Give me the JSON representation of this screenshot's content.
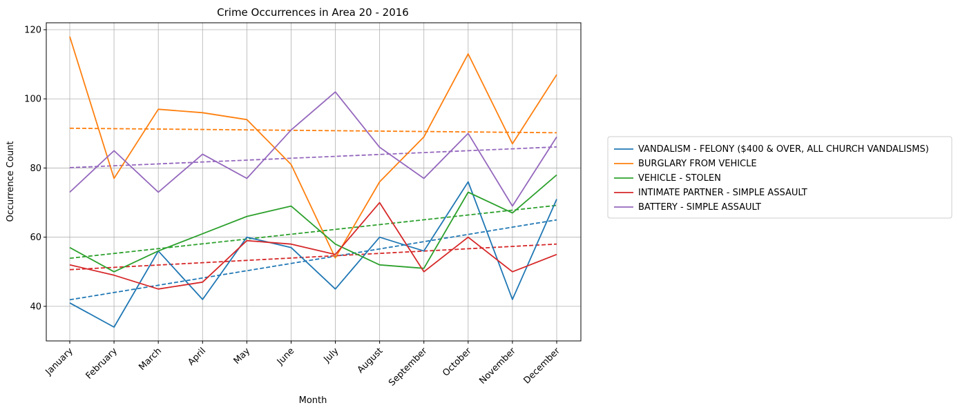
{
  "chart_data": {
    "type": "line",
    "title": "Crime Occurrences in Area 20 - 2016",
    "xlabel": "Month",
    "ylabel": "Occurrence Count",
    "categories": [
      "January",
      "February",
      "March",
      "April",
      "May",
      "June",
      "July",
      "August",
      "September",
      "October",
      "November",
      "December"
    ],
    "ylim": [
      30,
      122
    ],
    "yticks": [
      40,
      60,
      80,
      100,
      120
    ],
    "grid": true,
    "legend_position": "center-right, outside plot",
    "series": [
      {
        "name": "VANDALISM - FELONY ($400 & OVER, ALL CHURCH VANDALISMS)",
        "color": "#1f77b4",
        "values": [
          41,
          34,
          56,
          42,
          60,
          57,
          45,
          60,
          56,
          76,
          42,
          71
        ],
        "trend": [
          41.9,
          65.0
        ]
      },
      {
        "name": "BURGLARY FROM VEHICLE",
        "color": "#ff7f0e",
        "values": [
          118,
          77,
          97,
          96,
          94,
          81,
          54,
          76,
          89,
          113,
          87,
          107
        ],
        "trend": [
          91.5,
          90.2
        ]
      },
      {
        "name": "VEHICLE - STOLEN",
        "color": "#2ca02c",
        "values": [
          57,
          50,
          56,
          61,
          66,
          69,
          58,
          52,
          51,
          73,
          67,
          78
        ],
        "trend": [
          53.9,
          69.2
        ]
      },
      {
        "name": "INTIMATE PARTNER - SIMPLE ASSAULT",
        "color": "#d62728",
        "values": [
          52,
          49,
          45,
          47,
          59,
          58,
          55,
          70,
          50,
          60,
          50,
          55
        ],
        "trend": [
          50.6,
          58.0
        ]
      },
      {
        "name": "BATTERY - SIMPLE ASSAULT",
        "color": "#9467bd",
        "values": [
          73,
          85,
          73,
          84,
          77,
          91,
          102,
          86,
          77,
          90,
          69,
          89
        ],
        "trend": [
          80.1,
          86.1
        ]
      }
    ]
  }
}
